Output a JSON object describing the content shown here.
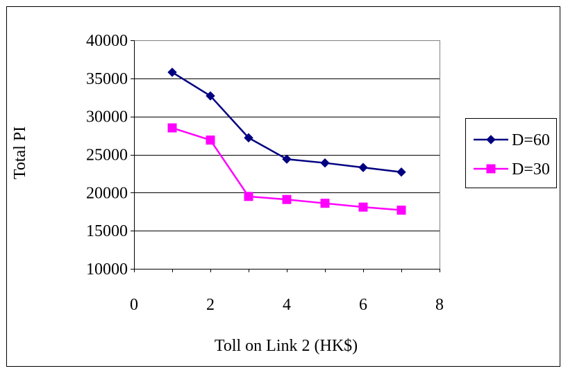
{
  "chart_data": {
    "type": "line",
    "title": "",
    "xlabel": "Toll on Link 2 (HK$)",
    "ylabel": "Total PI",
    "xlim": [
      0,
      8
    ],
    "ylim": [
      10000,
      40000
    ],
    "xticks": [
      0,
      2,
      4,
      6,
      8
    ],
    "yticks": [
      10000,
      15000,
      20000,
      25000,
      30000,
      35000,
      40000
    ],
    "grid": "horizontal",
    "legend_position": "right",
    "series": [
      {
        "name": "D=60",
        "color": "#000080",
        "marker": "diamond",
        "x": [
          1,
          2,
          3,
          4,
          5,
          6,
          7
        ],
        "y": [
          35800,
          32700,
          27200,
          24400,
          23900,
          23300,
          22700
        ]
      },
      {
        "name": "D=30",
        "color": "#FF00FF",
        "marker": "square",
        "x": [
          1,
          2,
          3,
          4,
          5,
          6,
          7
        ],
        "y": [
          28500,
          26900,
          19500,
          19100,
          18600,
          18100,
          17700
        ]
      }
    ]
  }
}
